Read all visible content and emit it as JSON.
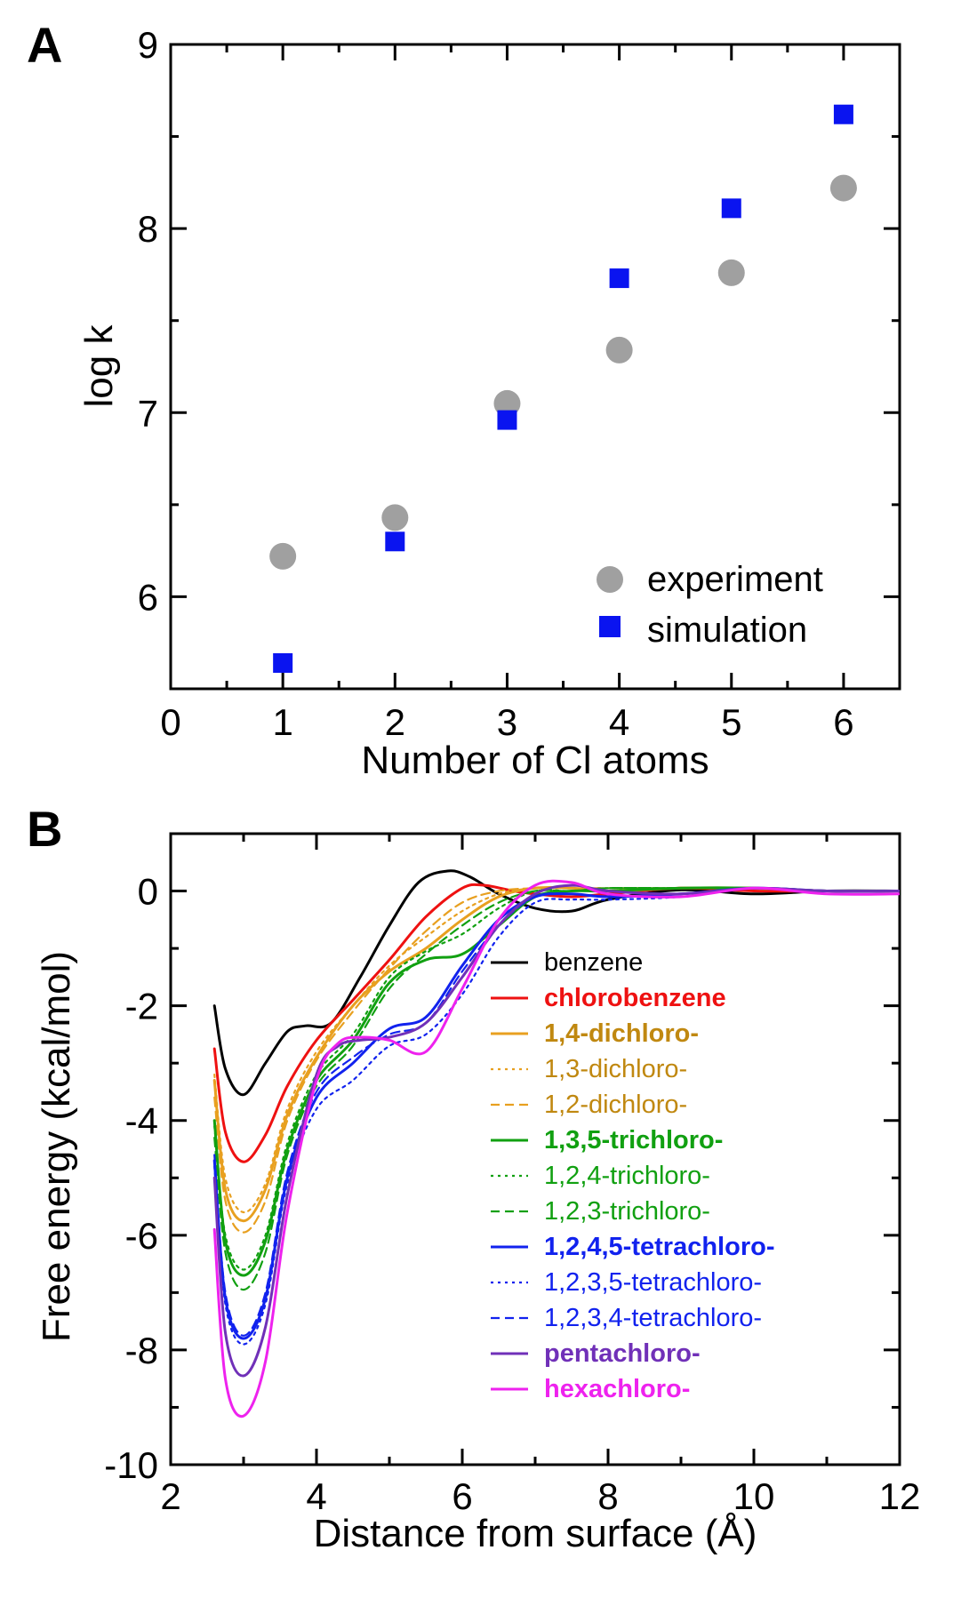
{
  "panels": {
    "a": {
      "letter": "A",
      "chart_data": {
        "type": "scatter",
        "xlabel": "Number of Cl atoms",
        "ylabel": "log k",
        "xlim": [
          0,
          6.5
        ],
        "ylim": [
          5.5,
          9
        ],
        "xticks": [
          0,
          1,
          2,
          3,
          4,
          5,
          6
        ],
        "yticks": [
          6,
          7,
          8,
          9
        ],
        "legend_position": "bottom-right",
        "series": [
          {
            "name": "experiment",
            "marker": "circle",
            "color": "#a0a0a0",
            "x": [
              1,
              2,
              3,
              4,
              5,
              6
            ],
            "y": [
              6.22,
              6.43,
              7.05,
              7.34,
              7.76,
              8.22
            ]
          },
          {
            "name": "simulation",
            "marker": "square",
            "color": "#0a14f0",
            "x": [
              1,
              2,
              3,
              4,
              5,
              6
            ],
            "y": [
              5.64,
              6.3,
              6.96,
              7.73,
              8.11,
              8.62
            ]
          }
        ]
      }
    },
    "b": {
      "letter": "B",
      "chart_data": {
        "type": "line",
        "xlabel": "Distance from surface (Å)",
        "ylabel": "Free energy (kcal/mol)",
        "xlim": [
          2,
          12
        ],
        "ylim": [
          -10,
          1
        ],
        "xticks": [
          2,
          4,
          6,
          8,
          10,
          12
        ],
        "yticks": [
          -10,
          -8,
          -6,
          -4,
          -2,
          0
        ],
        "legend_position": "center-right",
        "series": [
          {
            "name": "benzene",
            "color": "#000000",
            "style": "solid",
            "weight": "normal",
            "x": [
              2.6,
              2.75,
              3.0,
              3.3,
              3.6,
              3.85,
              4.2,
              4.6,
              5.0,
              5.4,
              5.8,
              6.1,
              6.5,
              7.0,
              7.5,
              8.0,
              9.0,
              10.0,
              11.0,
              12.0
            ],
            "y": [
              -2.0,
              -3.1,
              -3.55,
              -3.0,
              -2.45,
              -2.35,
              -2.3,
              -1.5,
              -0.6,
              0.15,
              0.35,
              0.25,
              -0.05,
              -0.3,
              -0.35,
              -0.15,
              0.02,
              -0.05,
              0.0,
              0.0
            ]
          },
          {
            "name": "chlorobenzene",
            "color": "#ee1111",
            "style": "solid",
            "weight": "bold",
            "x": [
              2.6,
              2.75,
              3.0,
              3.3,
              3.6,
              4.0,
              4.5,
              5.0,
              5.5,
              6.0,
              6.3,
              6.7,
              7.0,
              7.5,
              8.0,
              9.0,
              10.0,
              11.0,
              12.0
            ],
            "y": [
              -2.75,
              -4.2,
              -4.72,
              -4.25,
              -3.4,
              -2.6,
              -1.9,
              -1.2,
              -0.45,
              0.05,
              0.1,
              0.0,
              -0.05,
              -0.1,
              -0.05,
              0.05,
              0.0,
              0.0,
              0.0
            ]
          },
          {
            "name": "1,4-dichloro-",
            "color": "#e8a020",
            "style": "solid",
            "weight": "bold",
            "x": [
              2.6,
              2.75,
              3.0,
              3.3,
              3.6,
              4.0,
              4.5,
              5.0,
              5.5,
              6.0,
              6.5,
              7.0,
              7.5,
              8.0,
              9.0,
              10.0,
              11.0,
              12.0
            ],
            "y": [
              -3.3,
              -5.2,
              -5.75,
              -5.2,
              -3.9,
              -2.9,
              -2.0,
              -1.4,
              -1.0,
              -0.5,
              -0.1,
              0.05,
              0.05,
              0.0,
              0.05,
              0.05,
              0.0,
              0.0
            ]
          },
          {
            "name": "1,3-dichloro-",
            "color": "#e8a020",
            "style": "dotted",
            "weight": "normal",
            "x": [
              2.6,
              2.75,
              3.0,
              3.3,
              3.6,
              4.0,
              4.5,
              5.0,
              5.5,
              6.0,
              6.5,
              7.0,
              7.5,
              8.0,
              9.0,
              10.0,
              11.0,
              12.0
            ],
            "y": [
              -3.2,
              -5.0,
              -5.6,
              -5.1,
              -3.8,
              -2.8,
              -2.0,
              -1.3,
              -0.8,
              -0.35,
              -0.05,
              0.05,
              0.05,
              0.05,
              0.05,
              0.05,
              0.0,
              0.0
            ]
          },
          {
            "name": "1,2-dichloro-",
            "color": "#e8a020",
            "style": "dashed",
            "weight": "normal",
            "x": [
              2.6,
              2.75,
              3.0,
              3.3,
              3.6,
              4.0,
              4.5,
              5.0,
              5.5,
              6.0,
              6.5,
              7.0,
              7.5,
              8.0,
              9.0,
              10.0,
              11.0,
              12.0
            ],
            "y": [
              -3.6,
              -5.4,
              -5.95,
              -5.4,
              -4.0,
              -2.95,
              -2.1,
              -1.35,
              -0.7,
              -0.2,
              0.0,
              0.05,
              0.05,
              0.05,
              0.05,
              0.05,
              0.0,
              0.0
            ]
          },
          {
            "name": "1,3,5-trichloro-",
            "color": "#11a011",
            "style": "solid",
            "weight": "bold",
            "x": [
              2.6,
              2.75,
              3.0,
              3.3,
              3.6,
              4.0,
              4.5,
              5.0,
              5.5,
              6.0,
              6.5,
              7.0,
              7.5,
              8.0,
              9.0,
              10.0,
              11.0,
              12.0
            ],
            "y": [
              -4.0,
              -6.1,
              -6.7,
              -6.1,
              -4.5,
              -3.3,
              -2.6,
              -1.6,
              -1.2,
              -1.1,
              -0.6,
              -0.1,
              0.0,
              0.0,
              0.05,
              0.05,
              0.0,
              0.0
            ]
          },
          {
            "name": "1,2,4-trichloro-",
            "color": "#11a011",
            "style": "dotted",
            "weight": "normal",
            "x": [
              2.6,
              2.75,
              3.0,
              3.3,
              3.6,
              4.0,
              4.5,
              5.0,
              5.5,
              6.0,
              6.5,
              7.0,
              7.5,
              8.0,
              9.0,
              10.0,
              11.0,
              12.0
            ],
            "y": [
              -4.1,
              -6.0,
              -6.6,
              -6.0,
              -4.4,
              -3.2,
              -2.5,
              -1.5,
              -1.05,
              -0.75,
              -0.3,
              0.0,
              0.0,
              0.05,
              0.05,
              0.05,
              0.0,
              0.0
            ]
          },
          {
            "name": "1,2,3-trichloro-",
            "color": "#11a011",
            "style": "dashed",
            "weight": "normal",
            "x": [
              2.6,
              2.75,
              3.0,
              3.3,
              3.6,
              4.0,
              4.5,
              5.0,
              5.5,
              6.0,
              6.5,
              7.0,
              7.5,
              8.0,
              9.0,
              10.0,
              11.0,
              12.0
            ],
            "y": [
              -4.3,
              -6.3,
              -6.95,
              -6.3,
              -4.6,
              -3.4,
              -2.7,
              -1.7,
              -1.1,
              -0.6,
              -0.2,
              0.0,
              0.0,
              0.05,
              0.05,
              0.05,
              0.0,
              0.0
            ]
          },
          {
            "name": "1,2,4,5-tetrachloro-",
            "color": "#1122ee",
            "style": "solid",
            "weight": "bold",
            "x": [
              2.6,
              2.75,
              3.0,
              3.3,
              3.6,
              4.0,
              4.5,
              5.0,
              5.5,
              6.0,
              6.5,
              7.0,
              7.5,
              8.0,
              9.0,
              10.0,
              11.0,
              12.0
            ],
            "y": [
              -4.7,
              -7.1,
              -7.8,
              -7.1,
              -5.0,
              -3.6,
              -3.0,
              -2.4,
              -2.2,
              -1.3,
              -0.5,
              -0.1,
              -0.05,
              -0.1,
              -0.05,
              0.05,
              0.0,
              0.0
            ]
          },
          {
            "name": "1,2,3,5-tetrachloro-",
            "color": "#1122ee",
            "style": "dotted",
            "weight": "normal",
            "x": [
              2.6,
              2.75,
              3.0,
              3.3,
              3.6,
              4.0,
              4.5,
              5.0,
              5.5,
              6.0,
              6.5,
              7.0,
              7.5,
              8.0,
              9.0,
              10.0,
              11.0,
              12.0
            ],
            "y": [
              -4.8,
              -7.2,
              -7.9,
              -7.2,
              -5.1,
              -3.8,
              -3.3,
              -2.7,
              -2.5,
              -1.8,
              -0.8,
              -0.2,
              -0.15,
              -0.15,
              -0.1,
              0.05,
              0.0,
              0.0
            ]
          },
          {
            "name": "1,2,3,4-tetrachloro-",
            "color": "#1122ee",
            "style": "dashed",
            "weight": "normal",
            "x": [
              2.6,
              2.75,
              3.0,
              3.3,
              3.6,
              4.0,
              4.5,
              5.0,
              5.5,
              6.0,
              6.5,
              7.0,
              7.5,
              8.0,
              9.0,
              10.0,
              11.0,
              12.0
            ],
            "y": [
              -4.6,
              -7.0,
              -7.75,
              -7.0,
              -4.9,
              -3.5,
              -2.9,
              -2.5,
              -2.3,
              -1.4,
              -0.6,
              -0.1,
              -0.05,
              -0.1,
              -0.05,
              0.05,
              0.0,
              0.0
            ]
          },
          {
            "name": "pentachloro-",
            "color": "#7030b8",
            "style": "solid",
            "weight": "bold",
            "x": [
              2.6,
              2.75,
              3.0,
              3.3,
              3.6,
              4.0,
              4.3,
              4.6,
              5.0,
              5.5,
              6.0,
              6.5,
              7.0,
              7.5,
              8.0,
              9.0,
              10.0,
              11.0,
              12.0
            ],
            "y": [
              -5.0,
              -7.7,
              -8.45,
              -7.6,
              -5.3,
              -3.2,
              -2.7,
              -2.6,
              -2.55,
              -2.3,
              -1.5,
              -0.6,
              -0.05,
              0.1,
              0.0,
              -0.05,
              0.05,
              0.0,
              0.0
            ]
          },
          {
            "name": "hexachloro-",
            "color": "#ee22ee",
            "style": "solid",
            "weight": "bold",
            "x": [
              2.6,
              2.75,
              3.0,
              3.3,
              3.6,
              4.0,
              4.3,
              4.6,
              5.0,
              5.5,
              6.0,
              6.5,
              7.0,
              7.5,
              8.0,
              9.0,
              10.0,
              11.0,
              12.0
            ],
            "y": [
              -5.9,
              -8.5,
              -9.15,
              -8.2,
              -5.6,
              -3.3,
              -2.65,
              -2.55,
              -2.6,
              -2.8,
              -1.7,
              -0.5,
              0.1,
              0.15,
              -0.05,
              -0.1,
              0.05,
              -0.05,
              -0.05
            ]
          }
        ]
      }
    }
  }
}
